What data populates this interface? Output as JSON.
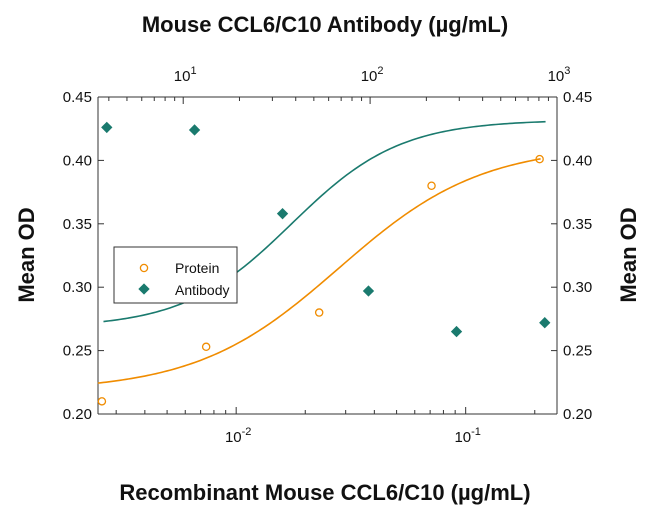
{
  "chart_data": {
    "type": "scatter",
    "top_axis_title": "Mouse CCL6/C10 Antibody (µg/mL)",
    "bottom_axis_title": "Recombinant Mouse CCL6/C10 (µg/mL)",
    "left_axis_title": "Mean OD",
    "right_axis_title": "Mean OD",
    "y_range": [
      0.2,
      0.45
    ],
    "y_ticks": [
      "0.20",
      "0.25",
      "0.30",
      "0.35",
      "0.40",
      "0.45"
    ],
    "bottom_axis": {
      "scale": "log",
      "range": [
        0.0025,
        0.25
      ],
      "ticks": [
        {
          "value": 0.01,
          "base": "10",
          "exp": "-2"
        },
        {
          "value": 0.1,
          "base": "10",
          "exp": "-1"
        }
      ]
    },
    "top_axis": {
      "scale": "log",
      "range": [
        3.5,
        1000
      ],
      "ticks": [
        {
          "value": 10,
          "base": "10",
          "exp": "1"
        },
        {
          "value": 100,
          "base": "10",
          "exp": "2"
        },
        {
          "value": 1000,
          "base": "10",
          "exp": "3"
        }
      ]
    },
    "legend": {
      "position": "left",
      "entries": [
        "Protein",
        "Antibody"
      ]
    },
    "series": [
      {
        "name": "Protein",
        "axis": "bottom",
        "marker": "open-circle",
        "color": "#f08c00",
        "x": [
          0.0026,
          0.0074,
          0.023,
          0.071,
          0.21
        ],
        "y": [
          0.21,
          0.253,
          0.28,
          0.38,
          0.401
        ],
        "fit": {
          "bottom": 0.218,
          "top": 0.412,
          "ec50": 0.028,
          "hill": 1.4
        }
      },
      {
        "name": "Antibody",
        "axis": "top",
        "marker": "filled-diamond",
        "color": "#1a7a6e",
        "x": [
          3.9,
          11.5,
          34,
          98,
          290,
          860
        ],
        "y": [
          0.426,
          0.424,
          0.358,
          0.297,
          0.265,
          0.272
        ],
        "fit": {
          "bottom": 0.268,
          "top": 0.432,
          "ec50": 38,
          "hill": 1.5
        }
      }
    ]
  }
}
